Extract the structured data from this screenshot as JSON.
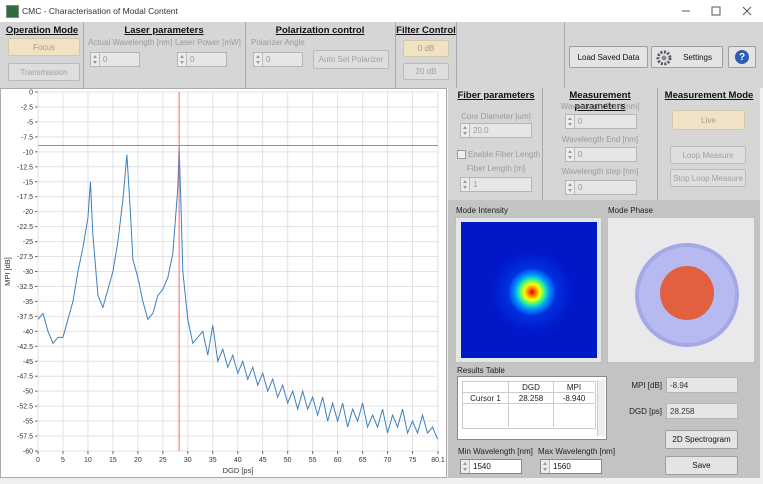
{
  "window": {
    "title": "CMC - Characterisation of Modal Content"
  },
  "operation_mode": {
    "title": "Operation Mode",
    "buttons": [
      "Focus",
      "Transmission"
    ]
  },
  "laser_parameters": {
    "title": "Laser parameters",
    "fields": [
      {
        "label": "Actual Wavelength [nm]",
        "value": "0"
      },
      {
        "label": "Laser Power [mW]",
        "value": "0"
      }
    ]
  },
  "polarization_control": {
    "title": "Polarization control",
    "field": {
      "label": "Polarizer Angle",
      "value": "0"
    },
    "button": "Auto Set Polarizer"
  },
  "filter_control": {
    "title": "Filter Control",
    "buttons": [
      "0 dB",
      "20 dB"
    ]
  },
  "toolbar": {
    "buttons": [
      "Load Saved Data",
      "Settings"
    ],
    "help": "?"
  },
  "chart": {
    "type": "line",
    "x_label": "DGD [ps]",
    "y_label": "MPI [dB]",
    "x": [
      0,
      1,
      2,
      3,
      4,
      5,
      6,
      7,
      8,
      9,
      10,
      10.5,
      11,
      12,
      13,
      14,
      15,
      16,
      17,
      17.8,
      18.5,
      19,
      20,
      21,
      22,
      23,
      24,
      25,
      26,
      27,
      28,
      28.258,
      28.6,
      29,
      30,
      31,
      32,
      33,
      34,
      35,
      36,
      37,
      38,
      39,
      40,
      41,
      42,
      43,
      44,
      45,
      46,
      47,
      48,
      49,
      50,
      51,
      52,
      53,
      54,
      55,
      56,
      57,
      58,
      59,
      60,
      61,
      62,
      63,
      64,
      65,
      66,
      67,
      68,
      69,
      70,
      71,
      72,
      73,
      74,
      75,
      76,
      77,
      78,
      79,
      80
    ],
    "values": [
      -38,
      -37,
      -40,
      -42,
      -41,
      -41,
      -38,
      -35,
      -30,
      -26,
      -21,
      -15,
      -24,
      -34,
      -36,
      -33,
      -30,
      -25,
      -18,
      -10.5,
      -20,
      -28,
      -31,
      -35,
      -38,
      -37,
      -34,
      -33,
      -31,
      -27,
      -16,
      -8.94,
      -18,
      -30,
      -38,
      -42,
      -41,
      -40,
      -44,
      -39,
      -45,
      -43,
      -46,
      -44,
      -47,
      -45,
      -48,
      -46,
      -49,
      -47,
      -50,
      -48,
      -51,
      -49,
      -52,
      -50,
      -53,
      -50,
      -53,
      -51,
      -54,
      -51,
      -55,
      -52,
      -55,
      -52,
      -56,
      -53,
      -55,
      -52,
      -56,
      -54,
      -56,
      -53,
      -57,
      -54,
      -56,
      -53,
      -57,
      -55,
      -57,
      -54,
      -57,
      -56,
      -58
    ],
    "color": "#3d7fc0",
    "xlim": [
      0,
      80.1
    ],
    "xticks": [
      0,
      5,
      10,
      15,
      20,
      25,
      30,
      35,
      40,
      45,
      50,
      55,
      60,
      65,
      70,
      75,
      80.1
    ],
    "ylim": [
      -60,
      0
    ],
    "yticks": [
      0,
      -2.5,
      -5,
      -7.5,
      -10,
      -12.5,
      -15,
      -17.5,
      -20,
      -22.5,
      -25,
      -27.5,
      -30,
      -32.5,
      -35,
      -37.5,
      -40,
      -42.5,
      -45,
      -47.5,
      -50,
      -52.5,
      -55,
      -57.5,
      -60
    ],
    "grid": true,
    "cursor": {
      "x": 28.258,
      "y": -8.94,
      "color": "#ff6464"
    }
  },
  "fiber_parameters": {
    "title": "Fiber parameters",
    "core_diameter": {
      "label": "Core Diameter [um]",
      "value": "20.0"
    },
    "enable_fiber_length": "Enable Fiber Length",
    "fiber_length": {
      "label": "Fiber Length [m]",
      "value": "1"
    }
  },
  "measurement_parameters": {
    "title": "Measurement parameters",
    "fields": [
      {
        "label": "Wavelength Start [nm]",
        "value": "0"
      },
      {
        "label": "Wavelength End [nm]",
        "value": "0"
      },
      {
        "label": "Wavelength step [nm]",
        "value": "0"
      }
    ]
  },
  "measurement_mode": {
    "title": "Measurement Mode",
    "buttons": [
      "Live",
      "Loop Measure",
      "Stop Loop Measure"
    ]
  },
  "mode_intensity": {
    "title": "Mode Intensity"
  },
  "mode_phase": {
    "title": "Mode Phase"
  },
  "results_table": {
    "title": "Results Table",
    "header": [
      "DGD",
      "MPI"
    ],
    "rows": [
      [
        "Cursor 1",
        "28.258",
        "-8.940"
      ]
    ]
  },
  "results": {
    "mpi": {
      "label": "MPI [dB]",
      "value": "-8.94"
    },
    "dgd": {
      "label": "DGD [ps]",
      "value": "28.258"
    }
  },
  "actions": [
    "2D Spectrogram",
    "Save"
  ],
  "wavelength_range": {
    "min": {
      "label": "Min Wavelength [nm]",
      "value": "1540"
    },
    "max": {
      "label": "Max Wavelength [nm]",
      "value": "1560"
    }
  }
}
